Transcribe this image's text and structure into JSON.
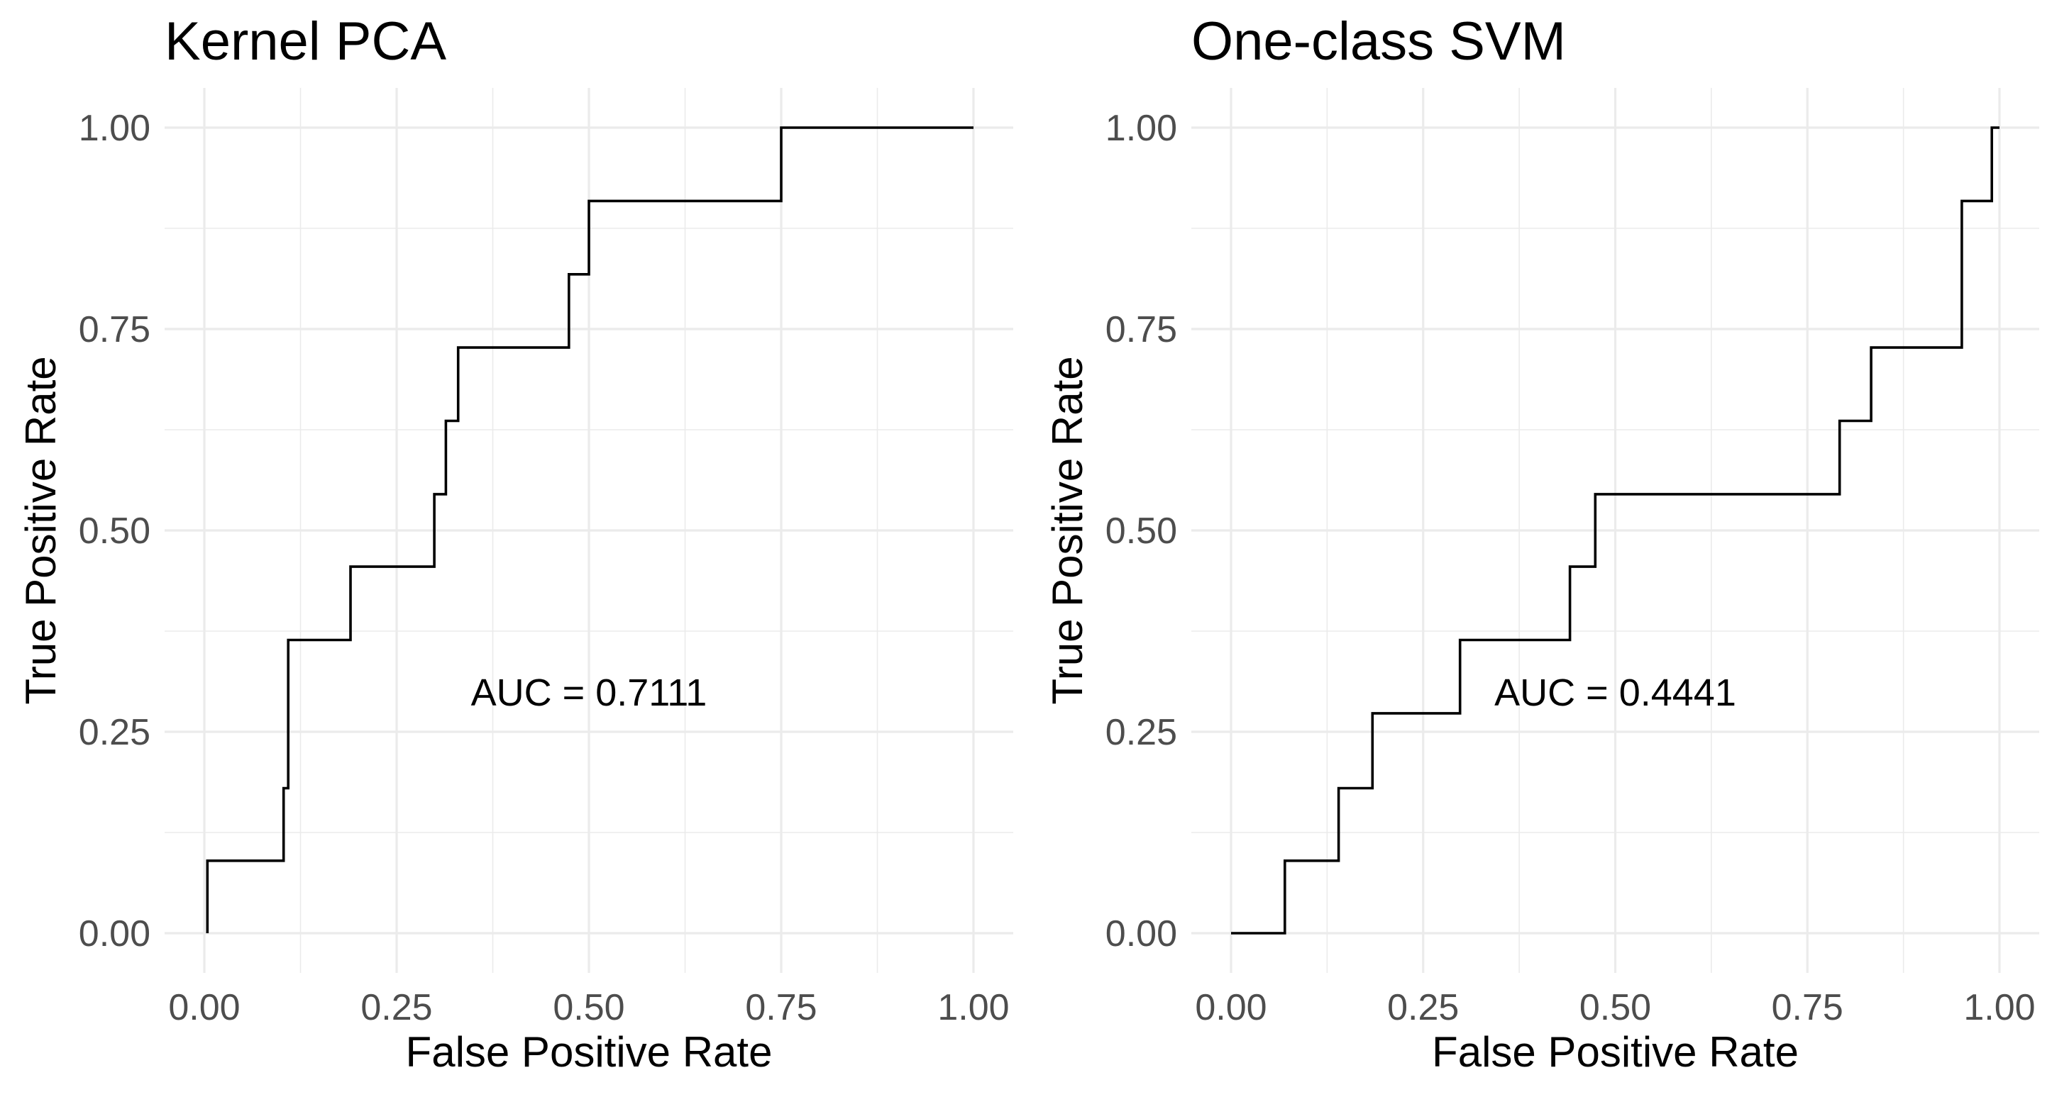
{
  "chart_data": [
    {
      "type": "line",
      "title": "Kernel PCA",
      "xlabel": "False Positive Rate",
      "ylabel": "True Positive Rate",
      "xlim": [
        0,
        1
      ],
      "ylim": [
        0,
        1
      ],
      "x_ticks": [
        "0.00",
        "0.25",
        "0.50",
        "0.75",
        "1.00"
      ],
      "y_ticks": [
        "0.00",
        "0.25",
        "0.50",
        "0.75",
        "1.00"
      ],
      "grid": true,
      "annotation": "AUC = 0.7111",
      "series": [
        {
          "step": "vertical-then-horizontal",
          "x": [
            0.004,
            0.004,
            0.103,
            0.103,
            0.109,
            0.109,
            0.19,
            0.19,
            0.299,
            0.299,
            0.314,
            0.314,
            0.33,
            0.33,
            0.474,
            0.474,
            0.5,
            0.5,
            0.75,
            0.75,
            1.0
          ],
          "y": [
            0.0,
            0.09,
            0.09,
            0.18,
            0.18,
            0.364,
            0.364,
            0.455,
            0.455,
            0.545,
            0.545,
            0.636,
            0.636,
            0.727,
            0.727,
            0.818,
            0.818,
            0.909,
            0.909,
            1.0,
            1.0
          ]
        }
      ]
    },
    {
      "type": "line",
      "title": "One-class SVM",
      "xlabel": "False Positive Rate",
      "ylabel": "True Positive Rate",
      "xlim": [
        0,
        1
      ],
      "ylim": [
        0,
        1
      ],
      "x_ticks": [
        "0.00",
        "0.25",
        "0.50",
        "0.75",
        "1.00"
      ],
      "y_ticks": [
        "0.00",
        "0.25",
        "0.50",
        "0.75",
        "1.00"
      ],
      "grid": true,
      "annotation": "AUC = 0.4441",
      "series": [
        {
          "step": "vertical-then-horizontal",
          "x": [
            0.0,
            0.07,
            0.07,
            0.14,
            0.14,
            0.184,
            0.184,
            0.298,
            0.298,
            0.441,
            0.441,
            0.474,
            0.474,
            0.792,
            0.792,
            0.833,
            0.833,
            0.951,
            0.951,
            0.99,
            0.99,
            1.0
          ],
          "y": [
            0.0,
            0.0,
            0.09,
            0.09,
            0.18,
            0.18,
            0.273,
            0.273,
            0.364,
            0.364,
            0.455,
            0.455,
            0.545,
            0.545,
            0.636,
            0.636,
            0.727,
            0.727,
            0.909,
            0.909,
            1.0,
            1.0
          ]
        }
      ]
    }
  ]
}
